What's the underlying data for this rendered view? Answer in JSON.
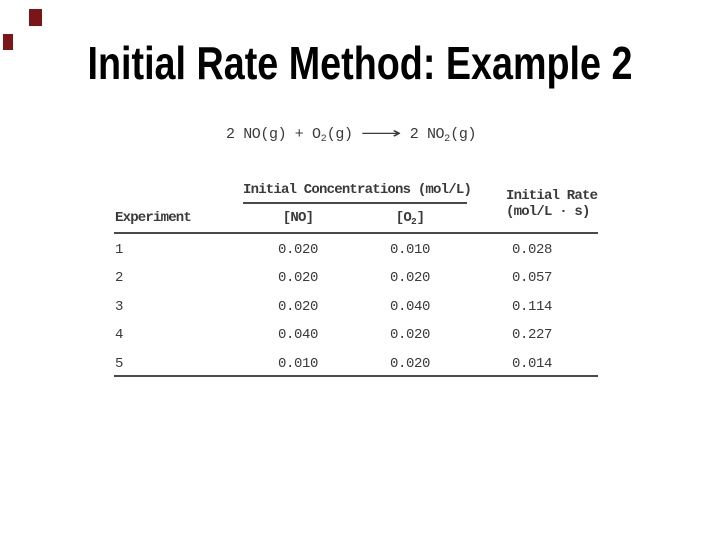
{
  "slide": {
    "title": "Initial Rate Method: Example 2",
    "background_color": "#ffffff",
    "title_color": "#000000",
    "body_text_color": "#3a3a3a",
    "corner_mark_color": "#7a1518"
  },
  "equation": {
    "prefix": "2 NO(g) + O",
    "sub1": "2",
    "mid1": "(g) ",
    "arrow": "⟶",
    "mid2": " 2 NO",
    "sub2": "2",
    "suffix": "(g)"
  },
  "table": {
    "group_header": "Initial Concentrations (mol/L)",
    "col_experiment": "Experiment",
    "col_no": "[NO]",
    "col_o2_base": "[O",
    "col_o2_sub": "2",
    "col_o2_close": "]",
    "rate_line1": "Initial Rate",
    "rate_line2": "(mol/L · s)",
    "rows": [
      {
        "experiment": "1",
        "no": "0.020",
        "o2": "0.010",
        "rate": "0.028"
      },
      {
        "experiment": "2",
        "no": "0.020",
        "o2": "0.020",
        "rate": "0.057"
      },
      {
        "experiment": "3",
        "no": "0.020",
        "o2": "0.040",
        "rate": "0.114"
      },
      {
        "experiment": "4",
        "no": "0.040",
        "o2": "0.020",
        "rate": "0.227"
      },
      {
        "experiment": "5",
        "no": "0.010",
        "o2": "0.020",
        "rate": "0.014"
      }
    ]
  }
}
